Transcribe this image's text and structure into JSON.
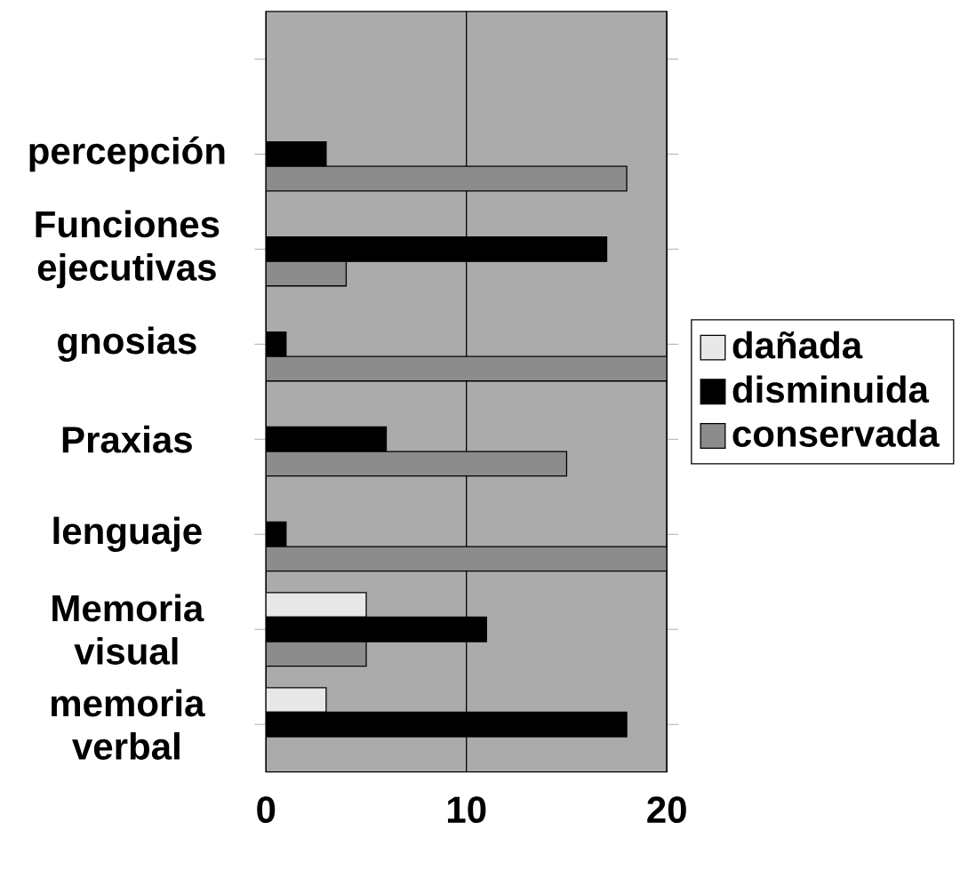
{
  "chart_data": {
    "type": "bar",
    "orientation": "horizontal",
    "categories": [
      null,
      "percepción",
      "Funciones ejecutivas",
      "gnosias",
      "Praxias",
      "lenguaje",
      "Memoria visual",
      "memoria verbal"
    ],
    "series": [
      {
        "name": "dañada",
        "color": "#e8e8e8",
        "values": [
          null,
          null,
          null,
          null,
          null,
          null,
          5,
          3
        ]
      },
      {
        "name": "disminuida",
        "color": "#000000",
        "values": [
          null,
          3,
          17,
          1,
          6,
          1,
          11,
          18
        ]
      },
      {
        "name": "conservada",
        "color": "#8c8c8c",
        "values": [
          null,
          18,
          4,
          20,
          15,
          20,
          5,
          0
        ]
      }
    ],
    "xlim": [
      0,
      20
    ],
    "xticks": [
      0,
      10,
      20
    ],
    "grid": "x",
    "legend": "right"
  }
}
